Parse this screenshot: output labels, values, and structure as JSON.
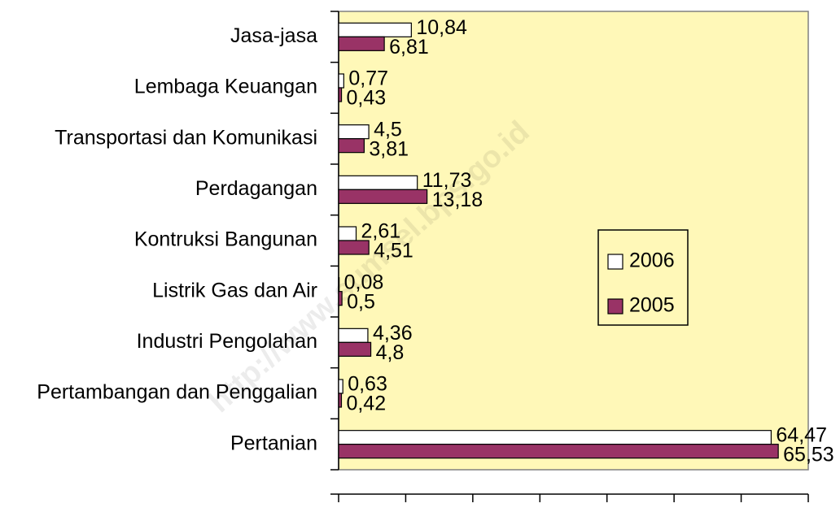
{
  "chart_data": {
    "type": "bar",
    "orientation": "horizontal",
    "categories": [
      "Jasa-jasa",
      "Lembaga Keuangan",
      "Transportasi dan Komunikasi",
      "Perdagangan",
      "Kontruksi Bangunan",
      "Listrik Gas dan Air",
      "Industri Pengolahan",
      "Pertambangan dan Penggalian",
      "Pertanian"
    ],
    "series": [
      {
        "name": "2006",
        "color": "#ffffff",
        "values": [
          10.84,
          0.77,
          4.5,
          11.73,
          2.61,
          0.08,
          4.36,
          0.63,
          64.47
        ],
        "value_labels": [
          "10,84",
          "0,77",
          "4,5",
          "11,73",
          "2,61",
          "0,08",
          "4,36",
          "0,63",
          "64,47"
        ]
      },
      {
        "name": "2005",
        "color": "#993366",
        "values": [
          6.81,
          0.43,
          3.81,
          13.18,
          4.51,
          0.5,
          4.8,
          0.42,
          65.53
        ],
        "value_labels": [
          "6,81",
          "0,43",
          "3,81",
          "13,18",
          "4,51",
          "0,5",
          "4,8",
          "0,42",
          "65,53"
        ]
      }
    ],
    "xlim": [
      0,
      70
    ],
    "xticks": [
      0,
      10,
      20,
      30,
      40,
      50,
      60,
      70
    ],
    "plot_background": "#fff8b8",
    "watermark": "http://www.sumsel.bps.go.id"
  }
}
